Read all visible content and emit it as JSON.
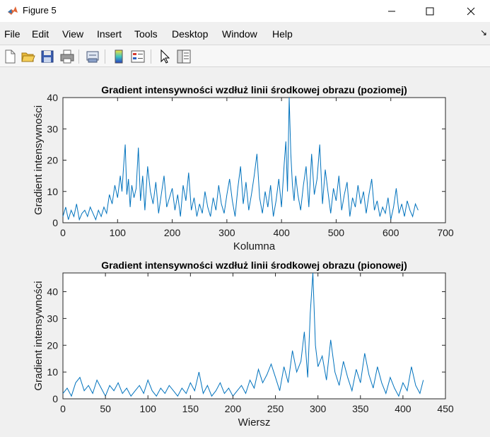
{
  "window": {
    "title": "Figure 5"
  },
  "menu": {
    "items": [
      "File",
      "Edit",
      "View",
      "Insert",
      "Tools",
      "Desktop",
      "Window",
      "Help"
    ],
    "overflow_icon": "dock-arrow-icon"
  },
  "toolbar": {
    "icons": [
      "new-figure-icon",
      "open-file-icon",
      "save-icon",
      "print-icon",
      "link-plot-icon",
      "insert-colorbar-icon",
      "insert-legend-icon",
      "pointer-icon",
      "property-inspector-icon"
    ]
  },
  "colors": {
    "line": "#0072bd",
    "axes_bg": "#ffffff",
    "figure_bg": "#f0f0f0"
  },
  "chart_data": [
    {
      "type": "line",
      "title": "Gradient intensywności wzdłuż linii środkowej obrazu (poziomej)",
      "xlabel": "Kolumna",
      "ylabel": "Gradient intensywności",
      "xlim": [
        0,
        700
      ],
      "ylim": [
        0,
        40
      ],
      "xticks": [
        0,
        100,
        200,
        300,
        400,
        500,
        600,
        700
      ],
      "yticks": [
        0,
        10,
        20,
        30,
        40
      ],
      "grid": false,
      "series": [
        {
          "x": [
            0,
            5,
            10,
            15,
            20,
            25,
            30,
            35,
            40,
            45,
            50,
            55,
            60,
            65,
            70,
            75,
            80,
            85,
            90,
            95,
            100,
            105,
            108,
            111,
            114,
            117,
            120,
            123,
            126,
            130,
            134,
            138,
            142,
            146,
            150,
            155,
            160,
            165,
            170,
            175,
            180,
            185,
            190,
            195,
            200,
            205,
            210,
            215,
            220,
            225,
            230,
            235,
            240,
            245,
            250,
            255,
            260,
            265,
            270,
            275,
            280,
            285,
            290,
            295,
            300,
            305,
            310,
            315,
            320,
            325,
            330,
            335,
            340,
            345,
            350,
            355,
            360,
            365,
            370,
            375,
            380,
            385,
            390,
            395,
            400,
            405,
            408,
            411,
            414,
            417,
            420,
            423,
            426,
            430,
            435,
            440,
            445,
            450,
            455,
            460,
            465,
            470,
            475,
            480,
            485,
            490,
            495,
            500,
            505,
            510,
            515,
            520,
            525,
            530,
            535,
            540,
            545,
            550,
            555,
            560,
            565,
            570,
            575,
            580,
            585,
            590,
            595,
            600,
            605,
            610,
            615,
            620,
            625,
            630,
            635,
            640,
            645,
            650
          ],
          "values": [
            2,
            5,
            1,
            4,
            2,
            6,
            1,
            3,
            4,
            2,
            5,
            3,
            1,
            4,
            2,
            5,
            3,
            9,
            6,
            12,
            8,
            15,
            10,
            18,
            25,
            9,
            14,
            5,
            12,
            8,
            11,
            24,
            7,
            15,
            4,
            18,
            10,
            6,
            13,
            3,
            9,
            15,
            5,
            8,
            11,
            4,
            9,
            2,
            12,
            7,
            16,
            4,
            8,
            2,
            6,
            3,
            10,
            5,
            2,
            8,
            4,
            12,
            6,
            3,
            9,
            14,
            7,
            2,
            11,
            18,
            6,
            13,
            4,
            9,
            15,
            22,
            8,
            3,
            10,
            5,
            12,
            2,
            7,
            14,
            5,
            19,
            26,
            10,
            40,
            22,
            12,
            7,
            15,
            9,
            4,
            12,
            18,
            5,
            22,
            9,
            14,
            25,
            6,
            17,
            10,
            3,
            11,
            7,
            15,
            4,
            9,
            13,
            2,
            8,
            5,
            12,
            6,
            10,
            3,
            9,
            14,
            4,
            7,
            2,
            5,
            3,
            8,
            1,
            5,
            11,
            3,
            6,
            2,
            7,
            4,
            2,
            6,
            4
          ]
        }
      ]
    },
    {
      "type": "line",
      "title": "Gradient intensywności wzdłuż linii środkowej obrazu (pionowej)",
      "xlabel": "Wiersz",
      "ylabel": "Gradient intensywności",
      "xlim": [
        0,
        450
      ],
      "ylim": [
        0,
        47
      ],
      "xticks": [
        0,
        50,
        100,
        150,
        200,
        250,
        300,
        350,
        400,
        450
      ],
      "yticks": [
        0,
        10,
        20,
        30,
        40
      ],
      "grid": false,
      "series": [
        {
          "x": [
            0,
            5,
            10,
            15,
            20,
            25,
            30,
            35,
            40,
            45,
            50,
            55,
            60,
            65,
            70,
            75,
            80,
            85,
            90,
            95,
            100,
            105,
            110,
            115,
            120,
            125,
            130,
            135,
            140,
            145,
            150,
            155,
            160,
            165,
            170,
            175,
            180,
            185,
            190,
            195,
            200,
            205,
            210,
            215,
            220,
            225,
            230,
            235,
            240,
            245,
            250,
            255,
            260,
            265,
            270,
            275,
            280,
            284,
            288,
            291,
            294,
            297,
            300,
            305,
            310,
            315,
            320,
            325,
            330,
            335,
            340,
            345,
            350,
            355,
            360,
            365,
            370,
            375,
            380,
            385,
            390,
            395,
            400,
            405,
            410,
            415,
            420,
            424
          ],
          "values": [
            2,
            4,
            1,
            6,
            8,
            3,
            5,
            2,
            7,
            4,
            1,
            5,
            3,
            6,
            2,
            4,
            1,
            3,
            5,
            2,
            7,
            3,
            1,
            4,
            2,
            5,
            3,
            1,
            4,
            2,
            6,
            3,
            10,
            2,
            5,
            1,
            3,
            6,
            2,
            4,
            1,
            3,
            5,
            2,
            7,
            4,
            11,
            6,
            9,
            13,
            8,
            3,
            12,
            6,
            18,
            10,
            14,
            25,
            8,
            32,
            47,
            20,
            12,
            16,
            7,
            22,
            10,
            5,
            14,
            8,
            3,
            11,
            6,
            17,
            9,
            4,
            12,
            6,
            2,
            8,
            4,
            1,
            6,
            3,
            12,
            5,
            2,
            7
          ]
        }
      ]
    }
  ]
}
